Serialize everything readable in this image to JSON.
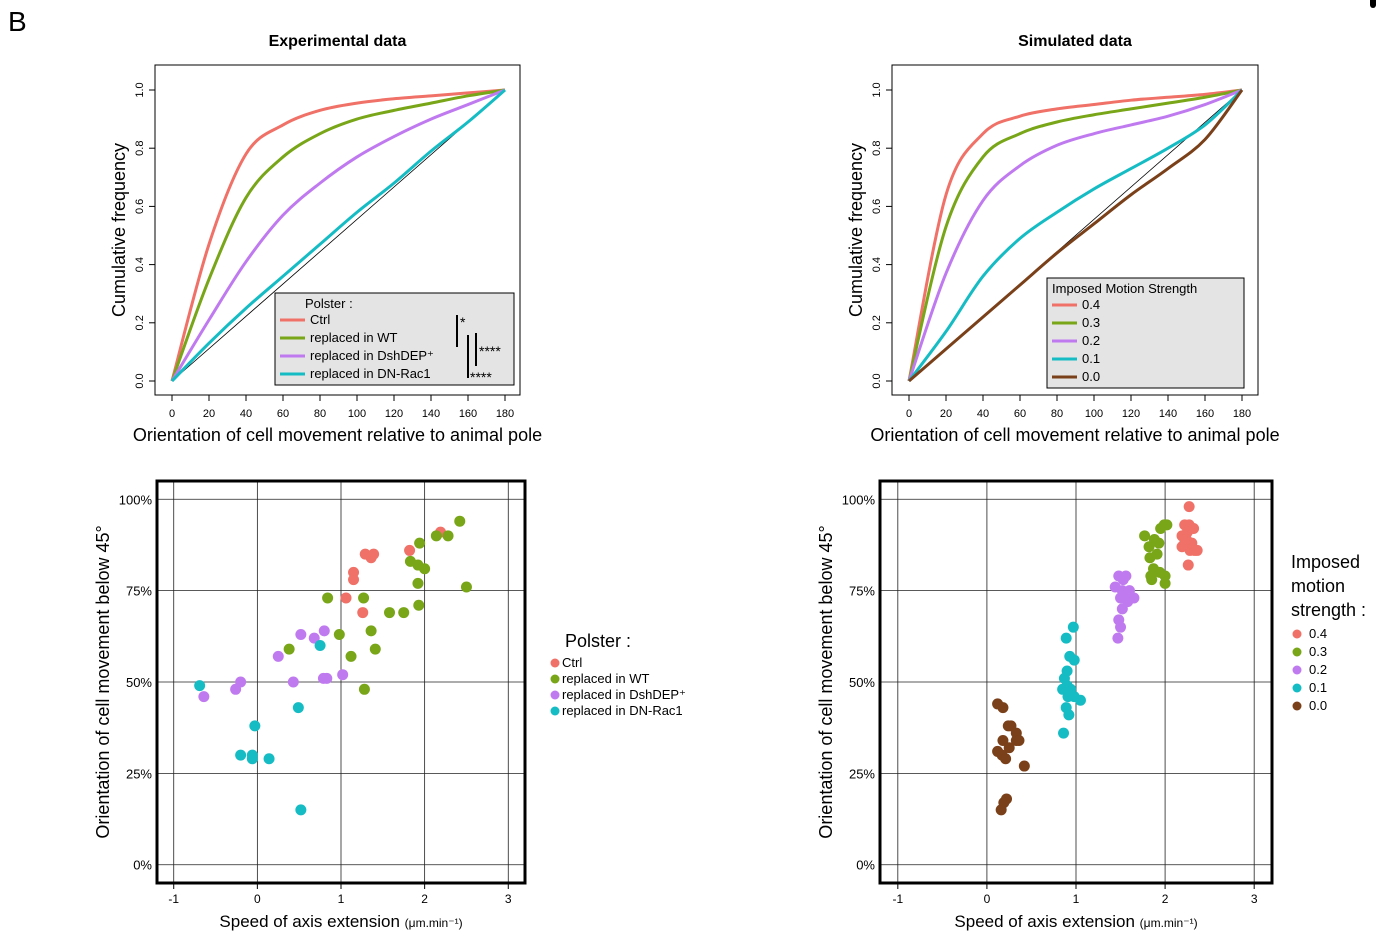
{
  "panel_label": "B",
  "colors": {
    "ctrl": "#f07167",
    "wt": "#78a618",
    "dsh": "#c07af0",
    "rac": "#16bcc4",
    "zero": "#7a4019",
    "legend_bg": "#e4e4e4"
  },
  "chart_data": [
    {
      "id": "exp-cumulative",
      "type": "line",
      "title": "Experimental data",
      "xlabel": "Orientation of cell movement relative to animal pole",
      "ylabel": "Cumulative frequency",
      "xlim": [
        0,
        180
      ],
      "ylim": [
        0,
        1
      ],
      "xticks": [
        "0",
        "20",
        "40",
        "60",
        "80",
        "100",
        "120",
        "140",
        "160",
        "180"
      ],
      "yticks": [
        "0.0",
        "0.2",
        "0.4",
        "0.6",
        "0.8",
        "1.0"
      ],
      "legend_title": "Polster :",
      "legend_placement": "bottom-right",
      "significance": [
        "*",
        "****",
        "****"
      ],
      "diagonal": true,
      "x": [
        0,
        20,
        40,
        60,
        80,
        100,
        120,
        140,
        160,
        180
      ],
      "series": [
        {
          "name": "Ctrl",
          "color": "ctrl",
          "values": [
            0,
            0.47,
            0.78,
            0.88,
            0.93,
            0.955,
            0.97,
            0.98,
            0.99,
            1.0
          ]
        },
        {
          "name": "replaced in WT",
          "color": "wt",
          "values": [
            0,
            0.35,
            0.63,
            0.77,
            0.85,
            0.9,
            0.93,
            0.955,
            0.98,
            1.0
          ]
        },
        {
          "name": "replaced in DshDEP⁺",
          "color": "dsh",
          "values": [
            0,
            0.21,
            0.41,
            0.57,
            0.68,
            0.77,
            0.84,
            0.9,
            0.95,
            1.0
          ]
        },
        {
          "name": "replaced in DN-Rac1",
          "color": "rac",
          "values": [
            0,
            0.13,
            0.25,
            0.36,
            0.47,
            0.58,
            0.68,
            0.79,
            0.89,
            1.0
          ]
        }
      ]
    },
    {
      "id": "sim-cumulative",
      "type": "line",
      "title": "Simulated data",
      "xlabel": "Orientation of cell movement relative to animal pole",
      "ylabel": "Cumulative frequency",
      "xlim": [
        0,
        180
      ],
      "ylim": [
        0,
        1
      ],
      "xticks": [
        "0",
        "20",
        "40",
        "60",
        "80",
        "100",
        "120",
        "140",
        "160",
        "180"
      ],
      "yticks": [
        "0.0",
        "0.2",
        "0.4",
        "0.6",
        "0.8",
        "1.0"
      ],
      "legend_title": "Imposed Motion Strength",
      "legend_placement": "bottom-right",
      "diagonal": true,
      "x": [
        0,
        20,
        40,
        60,
        80,
        100,
        120,
        140,
        160,
        180
      ],
      "series": [
        {
          "name": "0.4",
          "color": "ctrl",
          "values": [
            0,
            0.64,
            0.85,
            0.91,
            0.935,
            0.95,
            0.965,
            0.975,
            0.985,
            1.0
          ]
        },
        {
          "name": "0.3",
          "color": "wt",
          "values": [
            0,
            0.53,
            0.77,
            0.85,
            0.89,
            0.915,
            0.935,
            0.955,
            0.975,
            1.0
          ]
        },
        {
          "name": "0.2",
          "color": "dsh",
          "values": [
            0,
            0.37,
            0.62,
            0.74,
            0.81,
            0.85,
            0.88,
            0.91,
            0.95,
            1.0
          ]
        },
        {
          "name": "0.1",
          "color": "rac",
          "values": [
            0,
            0.17,
            0.36,
            0.49,
            0.58,
            0.66,
            0.73,
            0.8,
            0.88,
            1.0
          ]
        },
        {
          "name": "0.0",
          "color": "zero",
          "values": [
            0,
            0.11,
            0.22,
            0.33,
            0.44,
            0.54,
            0.64,
            0.73,
            0.83,
            1.0
          ]
        }
      ]
    },
    {
      "id": "exp-scatter",
      "type": "scatter",
      "xlabel": "Speed of axis extension",
      "xlabel_unit": "(μm.min⁻¹)",
      "ylabel": "Orientation of cell movement below 45°",
      "xlim": [
        -1.2,
        3.2
      ],
      "ylim": [
        -0.05,
        1.05
      ],
      "xticks": [
        "-1",
        "0",
        "1",
        "2",
        "3"
      ],
      "xtick_values": [
        -1,
        0,
        1,
        2,
        3
      ],
      "yticks": [
        "0%",
        "25%",
        "50%",
        "75%",
        "100%"
      ],
      "ytick_values": [
        0,
        0.25,
        0.5,
        0.75,
        1.0
      ],
      "legend_title": "Polster :",
      "legend_placement": "right",
      "series": [
        {
          "name": "Ctrl",
          "color": "ctrl",
          "points": [
            [
              1.29,
              0.85
            ],
            [
              1.36,
              0.84
            ],
            [
              1.39,
              0.85
            ],
            [
              1.15,
              0.8
            ],
            [
              1.15,
              0.78
            ],
            [
              1.06,
              0.73
            ],
            [
              1.26,
              0.69
            ],
            [
              1.82,
              0.86
            ],
            [
              2.19,
              0.91
            ]
          ]
        },
        {
          "name": "replaced in WT",
          "color": "wt",
          "points": [
            [
              1.94,
              0.88
            ],
            [
              1.83,
              0.83
            ],
            [
              1.92,
              0.82
            ],
            [
              2.0,
              0.81
            ],
            [
              2.14,
              0.9
            ],
            [
              2.28,
              0.9
            ],
            [
              2.42,
              0.94
            ],
            [
              2.5,
              0.76
            ],
            [
              1.92,
              0.77
            ],
            [
              1.58,
              0.69
            ],
            [
              1.75,
              0.69
            ],
            [
              1.93,
              0.71
            ],
            [
              1.27,
              0.73
            ],
            [
              1.36,
              0.64
            ],
            [
              1.41,
              0.59
            ],
            [
              1.12,
              0.57
            ],
            [
              0.84,
              0.73
            ],
            [
              0.98,
              0.63
            ],
            [
              1.28,
              0.48
            ],
            [
              0.38,
              0.59
            ]
          ]
        },
        {
          "name": "replaced in DshDEP⁺",
          "color": "dsh",
          "points": [
            [
              0.52,
              0.63
            ],
            [
              0.68,
              0.62
            ],
            [
              0.8,
              0.64
            ],
            [
              0.25,
              0.57
            ],
            [
              0.43,
              0.5
            ],
            [
              0.79,
              0.51
            ],
            [
              0.83,
              0.51
            ],
            [
              1.02,
              0.52
            ],
            [
              -0.2,
              0.5
            ],
            [
              -0.26,
              0.48
            ],
            [
              -0.64,
              0.46
            ]
          ]
        },
        {
          "name": "replaced in DN-Rac1",
          "color": "rac",
          "points": [
            [
              0.75,
              0.6
            ],
            [
              0.49,
              0.43
            ],
            [
              -0.69,
              0.49
            ],
            [
              -0.03,
              0.38
            ],
            [
              -0.06,
              0.3
            ],
            [
              -0.2,
              0.3
            ],
            [
              -0.06,
              0.29
            ],
            [
              0.14,
              0.29
            ],
            [
              0.52,
              0.15
            ]
          ]
        }
      ]
    },
    {
      "id": "sim-scatter",
      "type": "scatter",
      "xlabel": "Speed of axis extension",
      "xlabel_unit": "(μm.min⁻¹)",
      "ylabel": "Orientation of cell movement below 45°",
      "xlim": [
        -1.2,
        3.2
      ],
      "ylim": [
        -0.05,
        1.05
      ],
      "xticks": [
        "-1",
        "0",
        "1",
        "2",
        "3"
      ],
      "xtick_values": [
        -1,
        0,
        1,
        2,
        3
      ],
      "yticks": [
        "0%",
        "25%",
        "50%",
        "75%",
        "100%"
      ],
      "ytick_values": [
        0,
        0.25,
        0.5,
        0.75,
        1.0
      ],
      "legend_title": "Imposed\nmotion\nstrength :",
      "legend_placement": "right",
      "series": [
        {
          "name": "0.4",
          "color": "ctrl",
          "points": [
            [
              2.27,
              0.98
            ],
            [
              2.22,
              0.93
            ],
            [
              2.27,
              0.93
            ],
            [
              2.32,
              0.92
            ],
            [
              2.19,
              0.9
            ],
            [
              2.25,
              0.91
            ],
            [
              2.22,
              0.88
            ],
            [
              2.28,
              0.86
            ],
            [
              2.33,
              0.86
            ],
            [
              2.3,
              0.88
            ],
            [
              2.24,
              0.89
            ],
            [
              2.26,
              0.82
            ],
            [
              2.19,
              0.87
            ],
            [
              2.36,
              0.86
            ]
          ]
        },
        {
          "name": "0.3",
          "color": "wt",
          "points": [
            [
              1.77,
              0.9
            ],
            [
              1.99,
              0.93
            ],
            [
              2.02,
              0.93
            ],
            [
              1.95,
              0.92
            ],
            [
              1.88,
              0.89
            ],
            [
              1.93,
              0.88
            ],
            [
              1.82,
              0.87
            ],
            [
              1.91,
              0.85
            ],
            [
              1.83,
              0.84
            ],
            [
              1.87,
              0.81
            ],
            [
              1.84,
              0.79
            ],
            [
              1.94,
              0.8
            ],
            [
              2.0,
              0.79
            ],
            [
              1.85,
              0.78
            ],
            [
              2.0,
              0.77
            ]
          ]
        },
        {
          "name": "0.2",
          "color": "dsh",
          "points": [
            [
              1.48,
              0.79
            ],
            [
              1.56,
              0.79
            ],
            [
              1.44,
              0.76
            ],
            [
              1.53,
              0.78
            ],
            [
              1.52,
              0.75
            ],
            [
              1.6,
              0.75
            ],
            [
              1.65,
              0.73
            ],
            [
              1.5,
              0.73
            ],
            [
              1.58,
              0.72
            ],
            [
              1.54,
              0.74
            ],
            [
              1.52,
              0.7
            ],
            [
              1.48,
              0.67
            ],
            [
              1.5,
              0.65
            ],
            [
              1.47,
              0.62
            ]
          ]
        },
        {
          "name": "0.1",
          "color": "rac",
          "points": [
            [
              0.97,
              0.65
            ],
            [
              0.89,
              0.62
            ],
            [
              0.93,
              0.57
            ],
            [
              0.98,
              0.56
            ],
            [
              0.9,
              0.53
            ],
            [
              0.87,
              0.51
            ],
            [
              0.9,
              0.49
            ],
            [
              0.94,
              0.48
            ],
            [
              0.85,
              0.48
            ],
            [
              0.91,
              0.46
            ],
            [
              1.05,
              0.45
            ],
            [
              0.98,
              0.46
            ],
            [
              0.89,
              0.43
            ],
            [
              0.92,
              0.41
            ],
            [
              0.86,
              0.36
            ]
          ]
        },
        {
          "name": "0.0",
          "color": "zero",
          "points": [
            [
              0.12,
              0.44
            ],
            [
              0.18,
              0.43
            ],
            [
              0.24,
              0.38
            ],
            [
              0.27,
              0.38
            ],
            [
              0.33,
              0.36
            ],
            [
              0.18,
              0.34
            ],
            [
              0.12,
              0.31
            ],
            [
              0.25,
              0.32
            ],
            [
              0.17,
              0.3
            ],
            [
              0.33,
              0.34
            ],
            [
              0.21,
              0.29
            ],
            [
              0.36,
              0.34
            ],
            [
              0.42,
              0.27
            ],
            [
              0.22,
              0.18
            ],
            [
              0.19,
              0.17
            ],
            [
              0.16,
              0.15
            ]
          ]
        }
      ]
    }
  ]
}
